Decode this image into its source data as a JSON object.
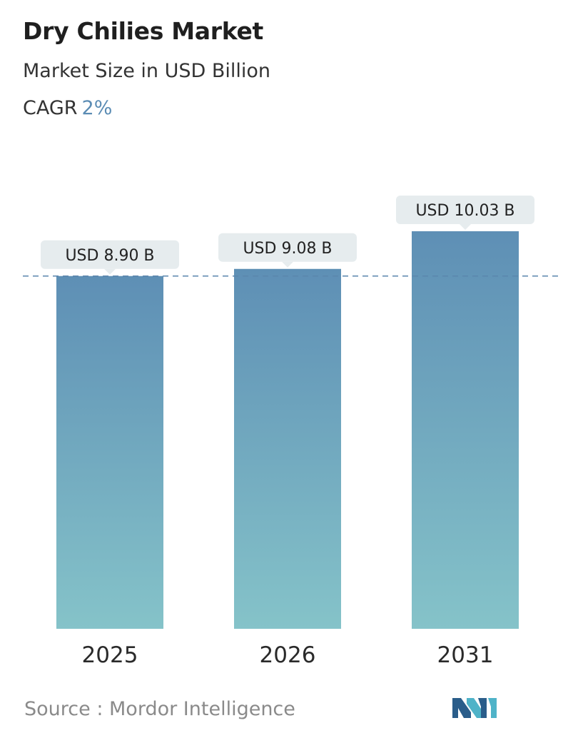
{
  "header": {
    "title": "Dry Chilies Market",
    "subtitle": "Market Size in USD Billion",
    "cagr_label": "CAGR",
    "cagr_value": "2%"
  },
  "footer": {
    "source_label": "Source :",
    "source_name": "Mordor Intelligence",
    "logo_icon": "mordor-intelligence-logo-icon"
  },
  "colors": {
    "bar_top": "#5e8fb5",
    "bar_bottom": "#85c3c9",
    "label_bg": "#e6ecee",
    "reference_line": "#5a86ad",
    "cagr_accent": "#5b8cb4",
    "logo_dark": "#2a5d8a",
    "logo_light": "#4fb3c8"
  },
  "chart_data": {
    "type": "bar",
    "title": "Dry Chilies Market",
    "subtitle": "Market Size in USD Billion",
    "categories": [
      "2025",
      "2026",
      "2031"
    ],
    "values": [
      8.9,
      9.08,
      10.03
    ],
    "data_labels": [
      "USD 8.90 B",
      "USD 9.08 B",
      "USD 10.03 B"
    ],
    "unit": "USD Billion",
    "reference_line_value": 8.9,
    "reference_line_style": "dashed",
    "ylim": [
      0,
      10.03
    ],
    "grid": false,
    "legend": "none"
  }
}
